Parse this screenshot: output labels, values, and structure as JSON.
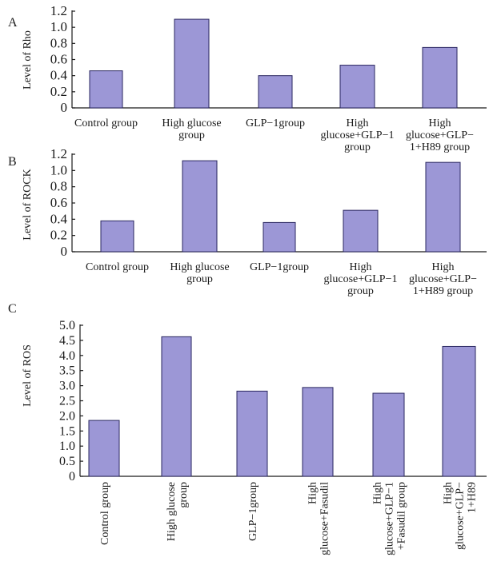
{
  "chart_data": [
    {
      "panel": "A",
      "type": "bar",
      "ylabel": "Level of Rho",
      "ylim": [
        0,
        1.2
      ],
      "yticks": [
        "0",
        "0.2",
        "0.4",
        "0.6",
        "0.8",
        "1.0",
        "1.2"
      ],
      "categories": [
        [
          "Control group"
        ],
        [
          "High glucose",
          "group"
        ],
        [
          "GLP−1group"
        ],
        [
          "High",
          "glucose+GLP−1",
          "group"
        ],
        [
          "High",
          "glucose+GLP−",
          "1+H89 group"
        ]
      ],
      "values": [
        0.46,
        1.1,
        0.4,
        0.53,
        0.75
      ],
      "colors": {
        "bar": "#9c97d6",
        "edge": "#2a2760"
      }
    },
    {
      "panel": "B",
      "type": "bar",
      "ylabel": "Level of ROCK",
      "ylim": [
        0,
        1.2
      ],
      "yticks": [
        "0",
        "0.2",
        "0.4",
        "0.6",
        "0.8",
        "1.0",
        "1.2"
      ],
      "categories": [
        [
          "Control group"
        ],
        [
          "High glucose",
          "group"
        ],
        [
          "GLP−1group"
        ],
        [
          "High",
          "glucose+GLP−1",
          "group"
        ],
        [
          "High",
          "glucose+GLP−",
          "1+H89 group"
        ]
      ],
      "values": [
        0.38,
        1.12,
        0.36,
        0.51,
        1.1
      ],
      "colors": {
        "bar": "#9c97d6",
        "edge": "#2a2760"
      }
    },
    {
      "panel": "C",
      "type": "bar",
      "ylabel": "Level of ROS",
      "ylim": [
        0,
        5.0
      ],
      "yticks": [
        "0",
        "0.5",
        "1.0",
        "1.5",
        "2.0",
        "2.5",
        "3.0",
        "3.5",
        "4.0",
        "4.5",
        "5.0"
      ],
      "categories": [
        [
          "Control group"
        ],
        [
          "High glucose",
          "group"
        ],
        [
          "GLP−1group"
        ],
        [
          "High",
          "glucose+Fasudil"
        ],
        [
          "High",
          "glucose+GLP−1",
          "+Fasudil group"
        ],
        [
          "High",
          "glucose+GLP−",
          "1+H89"
        ]
      ],
      "values": [
        1.85,
        4.62,
        2.82,
        2.94,
        2.75,
        4.3
      ],
      "colors": {
        "bar": "#9c97d6",
        "edge": "#2a2760"
      }
    }
  ]
}
